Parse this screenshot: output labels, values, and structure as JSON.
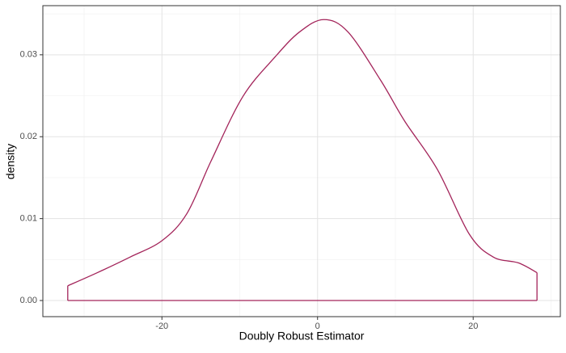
{
  "chart_data": {
    "type": "density",
    "x_label": "Doubly Robust Estimator",
    "y_label": "density",
    "x": [
      -32.1,
      -28.3,
      -24.1,
      -20,
      -16.8,
      -13.7,
      -9.6,
      -5.4,
      -2.3,
      0.8,
      3.9,
      8.1,
      11.2,
      15.4,
      19.5,
      22.6,
      25.8,
      28.2
    ],
    "values": [
      0.0018,
      0.0034,
      0.0053,
      0.0073,
      0.0106,
      0.017,
      0.0249,
      0.0298,
      0.0328,
      0.0343,
      0.0328,
      0.0269,
      0.0219,
      0.016,
      0.0081,
      0.0053,
      0.0046,
      0.0034
    ],
    "color": "#a3245a",
    "xlim": [
      -35.3,
      31.2
    ],
    "ylim": [
      -0.00197,
      0.036
    ],
    "xticks": [
      -20,
      0,
      20
    ],
    "yticks": [
      {
        "value": 0,
        "label": "0.00"
      },
      {
        "value": 0.01,
        "label": "0.01"
      },
      {
        "value": 0.02,
        "label": "0.02"
      },
      {
        "value": 0.03,
        "label": "0.03"
      }
    ],
    "grid": true
  }
}
